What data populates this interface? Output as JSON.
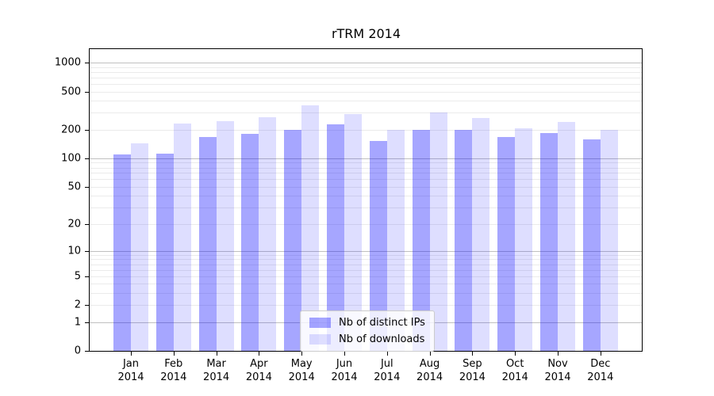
{
  "chart_data": {
    "type": "bar",
    "title": "rTRM 2014",
    "categories": [
      "Jan",
      "Feb",
      "Mar",
      "Apr",
      "May",
      "Jun",
      "Jul",
      "Aug",
      "Sep",
      "Oct",
      "Nov",
      "Dec"
    ],
    "category_year": "2014",
    "series": [
      {
        "name": "Nb of distinct IPs",
        "color": "rgba(0,0,255,0.35)",
        "values": [
          110,
          113,
          168,
          182,
          200,
          228,
          153,
          197,
          200,
          168,
          185,
          158
        ]
      },
      {
        "name": "Nb of downloads",
        "color": "rgba(0,0,255,0.13)",
        "values": [
          145,
          230,
          245,
          268,
          358,
          290,
          200,
          300,
          263,
          205,
          240,
          197
        ]
      }
    ],
    "xlabel": "",
    "ylabel": "",
    "yscale": "log1p",
    "y_ticks": [
      1000,
      500,
      200,
      100,
      50,
      20,
      10,
      5,
      2,
      1,
      0
    ],
    "ylim": [
      0,
      1385
    ],
    "grid": true,
    "legend_position": "lower center"
  },
  "style": {
    "axis_color": "#000000",
    "grid_major_color": "#c0c0c0",
    "grid_minor_color": "#ebebeb",
    "background": "#ffffff",
    "legend_border": "#cccccc"
  }
}
